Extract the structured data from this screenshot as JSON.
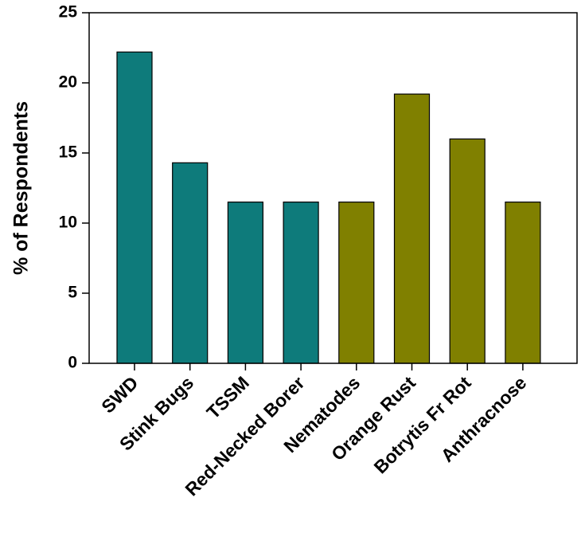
{
  "chart_data": {
    "type": "bar",
    "title": "",
    "xlabel": "",
    "ylabel": "% of Respondents",
    "ylim": [
      0,
      25
    ],
    "yticks": [
      "0",
      "5",
      "10",
      "15",
      "20",
      "25"
    ],
    "categories": [
      "SWD",
      "Stink Bugs",
      "TSSM",
      "Red-Necked Borer",
      "Nematodes",
      "Orange Rust",
      "Botrytis Fr Rot",
      "Anthracnose"
    ],
    "values": [
      22.2,
      14.3,
      11.5,
      11.5,
      11.5,
      19.2,
      16.0,
      11.5
    ],
    "bar_colors": [
      "#0e7b7b",
      "#0e7b7b",
      "#0e7b7b",
      "#0e7b7b",
      "#808000",
      "#808000",
      "#808000",
      "#808000"
    ],
    "grid": false,
    "legend": false
  }
}
